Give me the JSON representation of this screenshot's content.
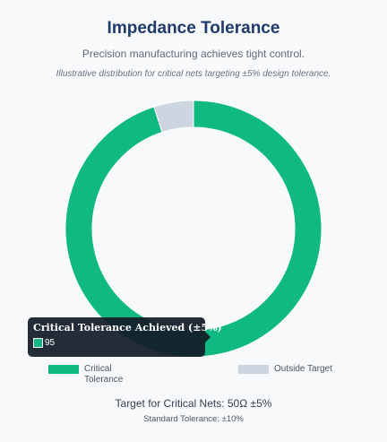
{
  "header": {
    "title": "Impedance Tolerance",
    "subtitle": "Precision manufacturing achieves tight control.",
    "note": "Illustrative distribution for critical nets targeting ±5% design tolerance."
  },
  "chart_data": {
    "type": "pie",
    "variant": "doughnut",
    "series": [
      {
        "name": "Critical Tolerance Achieved (±5%)",
        "value": 95,
        "color": "#10b981"
      },
      {
        "name": "Outside Target",
        "value": 5,
        "color": "#cdd5e0"
      }
    ],
    "legend": {
      "position": "bottom",
      "items": [
        "Critical Tolerance Achieved (±5%)",
        "Outside Target"
      ]
    },
    "tooltip": {
      "title": "Critical Tolerance Achieved (±5%)",
      "value": "95"
    }
  },
  "footer": {
    "target": "Target for Critical Nets: 50Ω ±5%",
    "standard": "Standard Tolerance: ±10%"
  }
}
